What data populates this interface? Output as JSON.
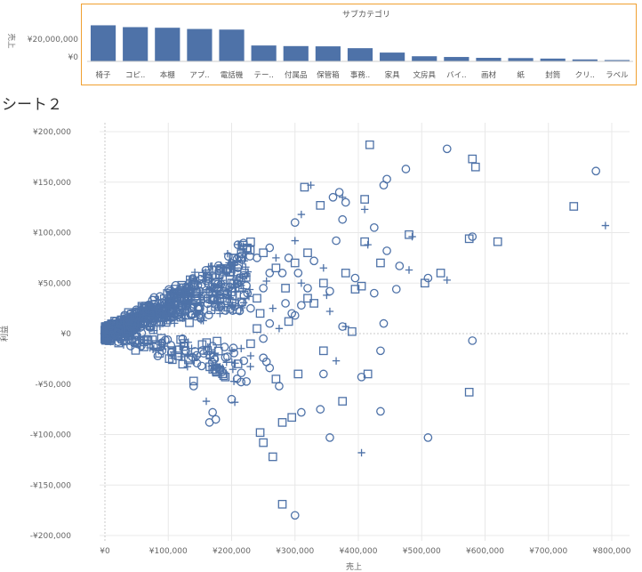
{
  "sheet_title": "シート２",
  "accent_color": "#4e72a8",
  "highlight_border_color": "#f0a030",
  "chart_data": [
    {
      "type": "bar",
      "title": "サブカテゴリ",
      "ylabel": "売上",
      "y_ticks": [
        "¥20,000,000",
        "¥0"
      ],
      "ylim": [
        0,
        32000000
      ],
      "categories": [
        "椅子",
        "コピ..",
        "本棚",
        "アプ..",
        "電話機",
        "テー..",
        "付属品",
        "保管箱",
        "事務..",
        "家具",
        "文房具",
        "バイ..",
        "画材",
        "紙",
        "封筒",
        "クリ..",
        "ラベル"
      ],
      "values": [
        29500000,
        28000000,
        27500000,
        26500000,
        26000000,
        13000000,
        12500000,
        12300000,
        10800000,
        7200000,
        4200000,
        3600000,
        2900000,
        2700000,
        2300000,
        1600000,
        1100000
      ]
    },
    {
      "type": "scatter",
      "xlabel": "売上",
      "ylabel": "利益",
      "xlim": [
        0,
        800000
      ],
      "ylim": [
        -200000,
        200000
      ],
      "x_ticks": [
        "¥0",
        "¥100,000",
        "¥200,000",
        "¥300,000",
        "¥400,000",
        "¥500,000",
        "¥600,000",
        "¥700,000",
        "¥800,000"
      ],
      "y_ticks": [
        "¥200,000",
        "¥150,000",
        "¥100,000",
        "¥50,000",
        "¥0",
        "-¥50,000",
        "-¥100,000",
        "-¥150,000",
        "-¥200,000"
      ],
      "grid": true,
      "marker_shapes": [
        "circle",
        "square",
        "plus"
      ],
      "points": [
        [
          418000,
          187000,
          "square"
        ],
        [
          540000,
          183000,
          "circle"
        ],
        [
          580000,
          173000,
          "square"
        ],
        [
          585000,
          165000,
          "square"
        ],
        [
          475000,
          163000,
          "circle"
        ],
        [
          775000,
          161000,
          "circle"
        ],
        [
          445000,
          153000,
          "circle"
        ],
        [
          440000,
          147000,
          "circle"
        ],
        [
          315000,
          145000,
          "square"
        ],
        [
          325000,
          147000,
          "plus"
        ],
        [
          370000,
          140000,
          "circle"
        ],
        [
          360000,
          135000,
          "circle"
        ],
        [
          375000,
          135000,
          "plus"
        ],
        [
          380000,
          130000,
          "circle"
        ],
        [
          340000,
          127000,
          "square"
        ],
        [
          410000,
          133000,
          "square"
        ],
        [
          410000,
          123000,
          "plus"
        ],
        [
          740000,
          126000,
          "square"
        ],
        [
          300000,
          110000,
          "circle"
        ],
        [
          310000,
          118000,
          "plus"
        ],
        [
          375000,
          113000,
          "circle"
        ],
        [
          425000,
          105000,
          "circle"
        ],
        [
          480000,
          98000,
          "square"
        ],
        [
          485000,
          96000,
          "plus"
        ],
        [
          580000,
          96000,
          "circle"
        ],
        [
          575000,
          94000,
          "square"
        ],
        [
          620000,
          91000,
          "square"
        ],
        [
          790000,
          107000,
          "plus"
        ],
        [
          365000,
          92000,
          "circle"
        ],
        [
          410000,
          91000,
          "square"
        ],
        [
          415000,
          88000,
          "plus"
        ],
        [
          445000,
          82000,
          "circle"
        ],
        [
          300000,
          92000,
          "plus"
        ],
        [
          320000,
          80000,
          "square"
        ],
        [
          435000,
          70000,
          "square"
        ],
        [
          465000,
          67000,
          "circle"
        ],
        [
          480000,
          63000,
          "plus"
        ],
        [
          530000,
          60000,
          "square"
        ],
        [
          510000,
          55000,
          "circle"
        ],
        [
          540000,
          53000,
          "plus"
        ],
        [
          505000,
          50000,
          "square"
        ],
        [
          330000,
          72000,
          "circle"
        ],
        [
          345000,
          65000,
          "plus"
        ],
        [
          380000,
          60000,
          "square"
        ],
        [
          395000,
          55000,
          "circle"
        ],
        [
          345000,
          50000,
          "square"
        ],
        [
          355000,
          42000,
          "circle"
        ],
        [
          395000,
          44000,
          "square"
        ],
        [
          405000,
          47000,
          "square"
        ],
        [
          425000,
          40000,
          "circle"
        ],
        [
          460000,
          44000,
          "circle"
        ],
        [
          350000,
          38000,
          "plus"
        ],
        [
          330000,
          30000,
          "square"
        ],
        [
          310000,
          28000,
          "circle"
        ],
        [
          355000,
          22000,
          "plus"
        ],
        [
          300000,
          18000,
          "circle"
        ],
        [
          290000,
          12000,
          "square"
        ],
        [
          375000,
          7000,
          "circle"
        ],
        [
          380000,
          7000,
          "plus"
        ],
        [
          440000,
          10000,
          "circle"
        ],
        [
          390000,
          2000,
          "square"
        ],
        [
          580000,
          -7000,
          "circle"
        ],
        [
          435000,
          -17000,
          "circle"
        ],
        [
          345000,
          -17000,
          "square"
        ],
        [
          365000,
          -27000,
          "plus"
        ],
        [
          345000,
          -40000,
          "circle"
        ],
        [
          415000,
          -40000,
          "square"
        ],
        [
          405000,
          -43000,
          "circle"
        ],
        [
          305000,
          -40000,
          "square"
        ],
        [
          575000,
          -58000,
          "square"
        ],
        [
          375000,
          -67000,
          "square"
        ],
        [
          340000,
          -75000,
          "circle"
        ],
        [
          310000,
          -78000,
          "circle"
        ],
        [
          295000,
          -83000,
          "square"
        ],
        [
          280000,
          -88000,
          "square"
        ],
        [
          435000,
          -77000,
          "circle"
        ],
        [
          355000,
          -103000,
          "circle"
        ],
        [
          510000,
          -103000,
          "circle"
        ],
        [
          405000,
          -118000,
          "plus"
        ],
        [
          265000,
          -122000,
          "square"
        ],
        [
          250000,
          -108000,
          "square"
        ],
        [
          245000,
          -98000,
          "square"
        ],
        [
          175000,
          -85000,
          "circle"
        ],
        [
          170000,
          -78000,
          "circle"
        ],
        [
          165000,
          -88000,
          "circle"
        ],
        [
          160000,
          -67000,
          "plus"
        ],
        [
          205000,
          -68000,
          "plus"
        ],
        [
          200000,
          -65000,
          "circle"
        ],
        [
          280000,
          -169000,
          "square"
        ],
        [
          300000,
          -180000,
          "circle"
        ],
        [
          215000,
          -48000,
          "circle"
        ],
        [
          190000,
          -43000,
          "square"
        ],
        [
          185000,
          -38000,
          "circle"
        ],
        [
          140000,
          -52000,
          "circle"
        ],
        [
          140000,
          -47000,
          "square"
        ],
        [
          255000,
          -28000,
          "circle"
        ],
        [
          250000,
          -24000,
          "circle"
        ],
        [
          230000,
          -22000,
          "plus"
        ],
        [
          210000,
          -30000,
          "square"
        ],
        [
          180000,
          -35000,
          "circle"
        ],
        [
          260000,
          -34000,
          "circle"
        ],
        [
          270000,
          -45000,
          "square"
        ],
        [
          275000,
          -52000,
          "circle"
        ],
        [
          230000,
          25000,
          "circle"
        ],
        [
          240000,
          35000,
          "square"
        ],
        [
          250000,
          45000,
          "circle"
        ],
        [
          255000,
          52000,
          "plus"
        ],
        [
          260000,
          60000,
          "circle"
        ],
        [
          270000,
          65000,
          "square"
        ],
        [
          270000,
          75000,
          "plus"
        ],
        [
          280000,
          60000,
          "circle"
        ],
        [
          285000,
          45000,
          "square"
        ],
        [
          285000,
          30000,
          "circle"
        ],
        [
          265000,
          25000,
          "plus"
        ],
        [
          245000,
          20000,
          "square"
        ],
        [
          225000,
          40000,
          "circle"
        ],
        [
          215000,
          55000,
          "square"
        ],
        [
          210000,
          65000,
          "circle"
        ],
        [
          220000,
          72000,
          "plus"
        ],
        [
          240000,
          75000,
          "circle"
        ],
        [
          250000,
          80000,
          "square"
        ],
        [
          260000,
          85000,
          "circle"
        ],
        [
          290000,
          75000,
          "circle"
        ],
        [
          300000,
          70000,
          "square"
        ],
        [
          305000,
          60000,
          "circle"
        ],
        [
          310000,
          50000,
          "plus"
        ],
        [
          320000,
          45000,
          "circle"
        ],
        [
          320000,
          35000,
          "square"
        ],
        [
          260000,
          10000,
          "circle"
        ],
        [
          240000,
          5000,
          "square"
        ],
        [
          275000,
          5000,
          "plus"
        ],
        [
          230000,
          -10000,
          "square"
        ],
        [
          250000,
          -5000,
          "circle"
        ],
        [
          295000,
          20000,
          "circle"
        ],
        [
          200000,
          50000,
          "square"
        ]
      ],
      "cluster_points": 900
    }
  ]
}
